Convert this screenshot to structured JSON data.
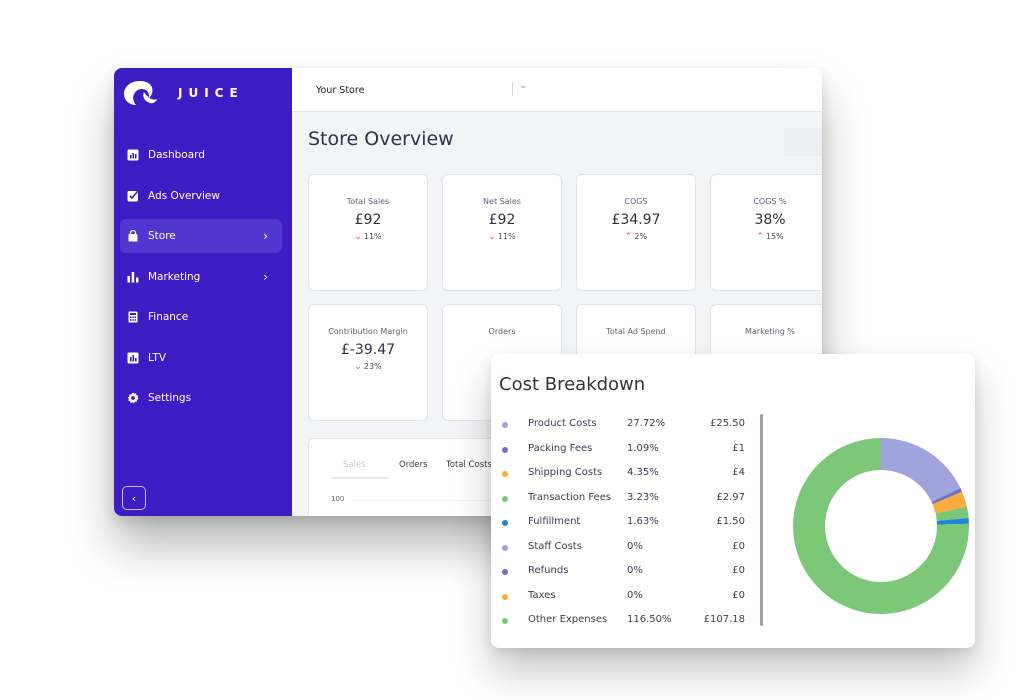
{
  "sidebar": {
    "brand": "JUICE",
    "items": [
      {
        "label": "Dashboard",
        "icon": "bar-chart-icon",
        "active": false,
        "chevron": ""
      },
      {
        "label": "Ads Overview",
        "icon": "checkbox-icon",
        "active": false,
        "chevron": ""
      },
      {
        "label": "Store",
        "icon": "bag-icon",
        "active": true,
        "chevron": "›"
      },
      {
        "label": "Marketing",
        "icon": "bars-icon",
        "active": false,
        "chevron": "›"
      },
      {
        "label": "Finance",
        "icon": "calculator-icon",
        "active": false,
        "chevron": ""
      },
      {
        "label": "LTV",
        "icon": "chart-box-icon",
        "active": false,
        "chevron": ""
      },
      {
        "label": "Settings",
        "icon": "gear-icon",
        "active": false,
        "chevron": ""
      }
    ],
    "collapse_label": "‹"
  },
  "topbar": {
    "store_name": "Your Store",
    "caret": "⌄"
  },
  "page": {
    "title": "Store Overview"
  },
  "metrics": [
    {
      "label": "Total Sales",
      "value": "£92",
      "direction": "down",
      "change": "11%"
    },
    {
      "label": "Net Sales",
      "value": "£92",
      "direction": "down",
      "change": "11%"
    },
    {
      "label": "COGS",
      "value": "£34.97",
      "direction": "up",
      "change": "2%"
    },
    {
      "label": "COGS %",
      "value": "38%",
      "direction": "up",
      "change": "15%"
    },
    {
      "label": "Contribution Margin",
      "value": "£-39.47",
      "direction": "down",
      "change": "23%"
    },
    {
      "label": "Orders",
      "value": "",
      "direction": "",
      "change": ""
    },
    {
      "label": "Total Ad Spend",
      "value": "",
      "direction": "",
      "change": ""
    },
    {
      "label": "Marketing %",
      "value": "",
      "direction": "",
      "change": ""
    }
  ],
  "chart_tabs": [
    "Sales",
    "Orders",
    "Total Costs"
  ],
  "chart_y_tick": "100",
  "cost_breakdown": {
    "title": "Cost Breakdown",
    "rows": [
      {
        "name": "Product Costs",
        "pct": "27.72%",
        "amount": "£25.50",
        "color": "#a1a3dc"
      },
      {
        "name": "Packing Fees",
        "pct": "1.09%",
        "amount": "£1",
        "color": "#6f6fc6"
      },
      {
        "name": "Shipping Costs",
        "pct": "4.35%",
        "amount": "£4",
        "color": "#f8ad3c"
      },
      {
        "name": "Transaction Fees",
        "pct": "3.23%",
        "amount": "£2.97",
        "color": "#7dc878"
      },
      {
        "name": "Fulfillment",
        "pct": "1.63%",
        "amount": "£1.50",
        "color": "#1e86d6"
      },
      {
        "name": "Staff Costs",
        "pct": "0%",
        "amount": "£0",
        "color": "#a1a3dc"
      },
      {
        "name": "Refunds",
        "pct": "0%",
        "amount": "£0",
        "color": "#6f6fc6"
      },
      {
        "name": "Taxes",
        "pct": "0%",
        "amount": "£0",
        "color": "#f8ad3c"
      },
      {
        "name": "Other Expenses",
        "pct": "116.50%",
        "amount": "£107.18",
        "color": "#7dc878"
      }
    ]
  },
  "chart_data": {
    "type": "pie",
    "categories": [
      "Product Costs",
      "Packing Fees",
      "Shipping Costs",
      "Transaction Fees",
      "Fulfillment",
      "Staff Costs",
      "Refunds",
      "Taxes",
      "Other Expenses"
    ],
    "values": [
      25.5,
      1,
      4,
      2.97,
      1.5,
      0,
      0,
      0,
      107.18
    ],
    "colors": [
      "#a1a3dc",
      "#6f6fc6",
      "#f8ad3c",
      "#7dc878",
      "#1e86d6",
      "#a1a3dc",
      "#6f6fc6",
      "#f8ad3c",
      "#7dc878"
    ]
  },
  "colors": {
    "sidebar": "#3d1dc3",
    "sidebar_active": "#5137d0",
    "negative": "#e2483d"
  }
}
